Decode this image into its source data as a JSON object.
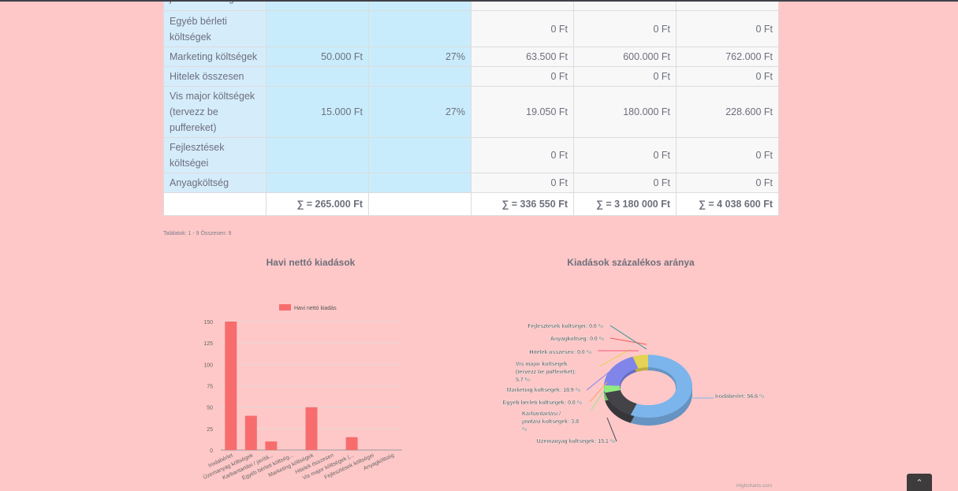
{
  "table": {
    "rows": [
      {
        "name": "javítási költségek",
        "monthly": "",
        "percent": "",
        "c3": "",
        "c4": "",
        "c5": ""
      },
      {
        "name": "Egyéb bérleti költségek",
        "monthly": "",
        "percent": "",
        "c3": "0 Ft",
        "c4": "0 Ft",
        "c5": "0 Ft"
      },
      {
        "name": "Marketing költségek",
        "monthly": "50.000 Ft",
        "percent": "27%",
        "c3": "63.500 Ft",
        "c4": "600.000 Ft",
        "c5": "762.000 Ft"
      },
      {
        "name": "Hitelek összesen",
        "monthly": "",
        "percent": "",
        "c3": "0 Ft",
        "c4": "0 Ft",
        "c5": "0 Ft"
      },
      {
        "name": "Vis major költségek (tervezz be puffereket)",
        "monthly": "15.000 Ft",
        "percent": "27%",
        "c3": "19.050 Ft",
        "c4": "180.000 Ft",
        "c5": "228.600 Ft"
      },
      {
        "name": "Fejlesztések költségei",
        "monthly": "",
        "percent": "",
        "c3": "0 Ft",
        "c4": "0 Ft",
        "c5": "0 Ft"
      },
      {
        "name": "Anyagköltség",
        "monthly": "",
        "percent": "",
        "c3": "0 Ft",
        "c4": "0 Ft",
        "c5": "0 Ft"
      }
    ],
    "sums": {
      "monthly": "∑ = 265.000 Ft",
      "c3": "∑ = 336 550 Ft",
      "c4": "∑ = 3 180 000 Ft",
      "c5": "∑ = 4 038 600 Ft"
    }
  },
  "pagination": {
    "summary": "Találatok: 1 - 9 Összesen: 9"
  },
  "chart_data": [
    {
      "type": "bar",
      "title": "Havi nettó kiadások",
      "legend": "Havi nettó kiadás",
      "legend_position": "top",
      "categories": [
        "Irodabérlet",
        "Üzemanyag költségek",
        "Karbantartási / javítá...",
        "Egyéb bérleti költség...",
        "Marketing költségek",
        "Hitelek összesen",
        "Vis major költségek (...",
        "Fejlesztések költségei",
        "Anyagköltség"
      ],
      "values": [
        150,
        40,
        10,
        0,
        50,
        0,
        15,
        0,
        0
      ],
      "yticks": [
        "0",
        "25",
        "50",
        "75",
        "100",
        "125",
        "150"
      ],
      "ylim": [
        0,
        150
      ],
      "color": "#f76d6d",
      "grid": true
    },
    {
      "type": "pie",
      "title": "Kiadások százalékos aránya",
      "slices": [
        {
          "label": "Irodabérlet: 56.6 %",
          "value": 56.6,
          "color": "#7cb5ec"
        },
        {
          "label": "Üzemanyag költségek: 15.1 %",
          "value": 15.1,
          "color": "#434348"
        },
        {
          "label": "Karbantartási / javítási költségek: 3.8 %",
          "value": 3.8,
          "color": "#90ed7d"
        },
        {
          "label": "Egyéb bérleti költségek: 0.0 %",
          "value": 0.0,
          "color": "#f7a35c"
        },
        {
          "label": "Marketing költségek: 18.9 %",
          "value": 18.9,
          "color": "#8085e9"
        },
        {
          "label": "Hitelek összesen: 0.0 %",
          "value": 0.0,
          "color": "#f15c80"
        },
        {
          "label": "Vis major költségek (tervezz be puffereket): 5.7 %",
          "value": 5.7,
          "color": "#e4d354"
        },
        {
          "label": "Fejlesztések költségei: 0.0 %",
          "value": 0.0,
          "color": "#2b908f"
        },
        {
          "label": "Anyagköltség: 0.0 %",
          "value": 0.0,
          "color": "#f45b5b"
        }
      ],
      "credits": "Highcharts.com"
    }
  ],
  "scroll_top": {
    "icon": "chevron-up-icon",
    "glyph": "⌃"
  }
}
